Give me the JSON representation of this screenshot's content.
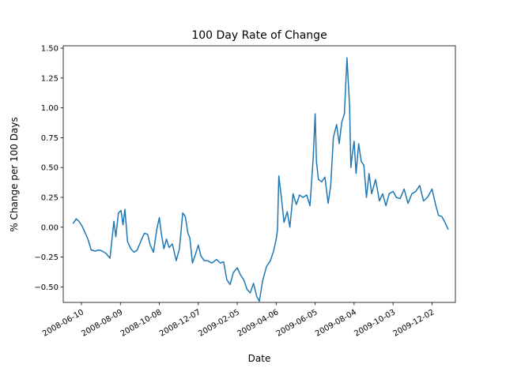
{
  "chart_data": {
    "type": "line",
    "title": "100 Day Rate of Change",
    "xlabel": "Date",
    "ylabel": "% Change per 100 Days",
    "x_type": "date",
    "xlim": [
      "2008-05-13",
      "2010-01-07"
    ],
    "ylim": [
      -0.63,
      1.52
    ],
    "x_ticks": [
      "2008-06-10",
      "2008-08-09",
      "2008-10-08",
      "2008-12-07",
      "2009-02-05",
      "2009-04-06",
      "2009-06-05",
      "2009-08-04",
      "2009-10-03",
      "2009-12-02"
    ],
    "y_ticks": [
      -0.5,
      -0.25,
      0.0,
      0.25,
      0.5,
      0.75,
      1.0,
      1.25,
      1.5
    ],
    "y_tick_labels": [
      "−0.50",
      "−0.25",
      "0.00",
      "0.25",
      "0.50",
      "0.75",
      "1.00",
      "1.25",
      "1.50"
    ],
    "grid": false,
    "legend": "none",
    "line_color": "#1f77b4",
    "series": [
      {
        "x": [
          "2008-05-28",
          "2008-06-02",
          "2008-06-06",
          "2008-06-11",
          "2008-06-16",
          "2008-06-20",
          "2008-06-25",
          "2008-07-01",
          "2008-07-07",
          "2008-07-12",
          "2008-07-18",
          "2008-07-24",
          "2008-07-30",
          "2008-08-02",
          "2008-08-06",
          "2008-08-10",
          "2008-08-13",
          "2008-08-16",
          "2008-08-20",
          "2008-08-25",
          "2008-08-30",
          "2008-09-04",
          "2008-09-10",
          "2008-09-15",
          "2008-09-20",
          "2008-09-24",
          "2008-09-29",
          "2008-10-04",
          "2008-10-08",
          "2008-10-11",
          "2008-10-15",
          "2008-10-19",
          "2008-10-23",
          "2008-10-28",
          "2008-11-03",
          "2008-11-08",
          "2008-11-13",
          "2008-11-17",
          "2008-11-21",
          "2008-11-24",
          "2008-11-28",
          "2008-12-03",
          "2008-12-07",
          "2008-12-11",
          "2008-12-16",
          "2008-12-21",
          "2008-12-28",
          "2009-01-04",
          "2009-01-10",
          "2009-01-15",
          "2009-01-20",
          "2009-01-25",
          "2009-01-30",
          "2009-02-05",
          "2009-02-10",
          "2009-02-15",
          "2009-02-20",
          "2009-02-25",
          "2009-03-02",
          "2009-03-07",
          "2009-03-11",
          "2009-03-16",
          "2009-03-22",
          "2009-03-28",
          "2009-04-02",
          "2009-04-06",
          "2009-04-08",
          "2009-04-10",
          "2009-04-14",
          "2009-04-18",
          "2009-04-23",
          "2009-04-27",
          "2009-05-02",
          "2009-05-07",
          "2009-05-12",
          "2009-05-17",
          "2009-05-23",
          "2009-05-28",
          "2009-06-02",
          "2009-06-05",
          "2009-06-07",
          "2009-06-10",
          "2009-06-15",
          "2009-06-20",
          "2009-06-25",
          "2009-06-29",
          "2009-07-03",
          "2009-07-08",
          "2009-07-12",
          "2009-07-16",
          "2009-07-20",
          "2009-07-24",
          "2009-07-28",
          "2009-07-30",
          "2009-08-01",
          "2009-08-04",
          "2009-08-07",
          "2009-08-11",
          "2009-08-15",
          "2009-08-19",
          "2009-08-23",
          "2009-08-27",
          "2009-08-31",
          "2009-09-06",
          "2009-09-12",
          "2009-09-17",
          "2009-09-22",
          "2009-09-27",
          "2009-10-03",
          "2009-10-08",
          "2009-10-14",
          "2009-10-20",
          "2009-10-26",
          "2009-11-01",
          "2009-11-07",
          "2009-11-13",
          "2009-11-19",
          "2009-11-25",
          "2009-12-02",
          "2009-12-07",
          "2009-12-12",
          "2009-12-17",
          "2009-12-22",
          "2009-12-27"
        ],
        "y": [
          0.03,
          0.07,
          0.05,
          0.01,
          -0.05,
          -0.1,
          -0.19,
          -0.2,
          -0.19,
          -0.2,
          -0.22,
          -0.26,
          0.05,
          -0.08,
          0.12,
          0.14,
          0.02,
          0.15,
          -0.12,
          -0.18,
          -0.21,
          -0.19,
          -0.11,
          -0.05,
          -0.06,
          -0.15,
          -0.21,
          -0.02,
          0.08,
          -0.05,
          -0.18,
          -0.1,
          -0.17,
          -0.14,
          -0.28,
          -0.18,
          0.12,
          0.09,
          -0.05,
          -0.09,
          -0.3,
          -0.22,
          -0.15,
          -0.24,
          -0.28,
          -0.28,
          -0.3,
          -0.27,
          -0.3,
          -0.29,
          -0.44,
          -0.48,
          -0.38,
          -0.34,
          -0.4,
          -0.44,
          -0.52,
          -0.55,
          -0.47,
          -0.58,
          -0.62,
          -0.45,
          -0.33,
          -0.28,
          -0.2,
          -0.1,
          -0.02,
          0.43,
          0.25,
          0.04,
          0.13,
          0.0,
          0.28,
          0.19,
          0.27,
          0.25,
          0.27,
          0.18,
          0.58,
          0.95,
          0.55,
          0.4,
          0.38,
          0.42,
          0.2,
          0.35,
          0.75,
          0.86,
          0.7,
          0.88,
          0.95,
          1.42,
          1.02,
          0.5,
          0.6,
          0.72,
          0.45,
          0.7,
          0.55,
          0.52,
          0.25,
          0.45,
          0.28,
          0.4,
          0.22,
          0.28,
          0.18,
          0.28,
          0.3,
          0.25,
          0.24,
          0.32,
          0.2,
          0.28,
          0.3,
          0.35,
          0.22,
          0.25,
          0.32,
          0.2,
          0.1,
          0.09,
          0.04,
          -0.02
        ]
      }
    ]
  }
}
